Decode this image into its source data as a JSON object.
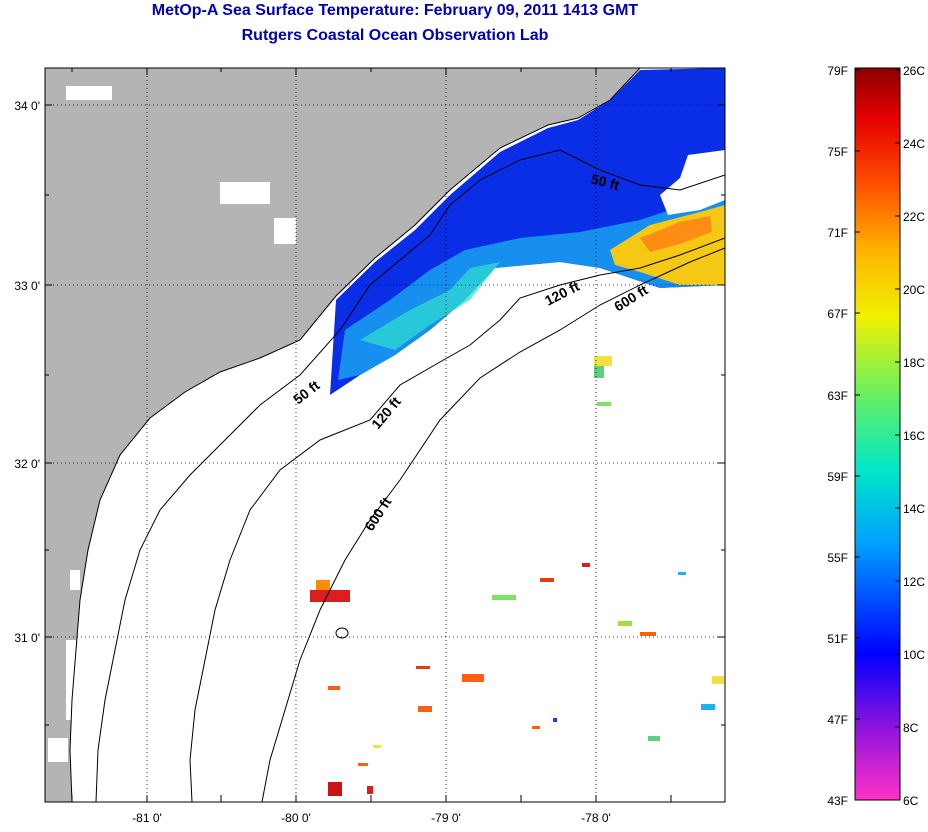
{
  "title": {
    "line1": "MetOp-A Sea Surface Temperature:  February 09, 2011 1413 GMT",
    "line2": "Rutgers Coastal Ocean Observation Lab"
  },
  "map": {
    "lat_labels": [
      "34 0'",
      "33 0'",
      "32 0'",
      "31 0'"
    ],
    "lon_labels": [
      "-81 0'",
      "-80 0'",
      "-79 0'",
      "-78 0'"
    ],
    "depth_labels": [
      "50 ft",
      "50 ft",
      "120 ft",
      "120 ft",
      "600 ft",
      "600 ft"
    ],
    "colors": {
      "land": "#b4b4b4",
      "ocean_nodata": "#ffffff",
      "cold_water": "#0a2ee6",
      "mid_water": "#19a0f0",
      "warm_water": "#f5c814",
      "hot_patch": "#dc1e1e"
    }
  },
  "colorbar": {
    "fahrenheit_labels": [
      "79F",
      "75F",
      "71F",
      "67F",
      "63F",
      "59F",
      "55F",
      "51F",
      "47F",
      "43F"
    ],
    "celsius_labels": [
      "26C",
      "24C",
      "22C",
      "20C",
      "18C",
      "16C",
      "14C",
      "12C",
      "10C",
      "8C",
      "6C"
    ]
  }
}
